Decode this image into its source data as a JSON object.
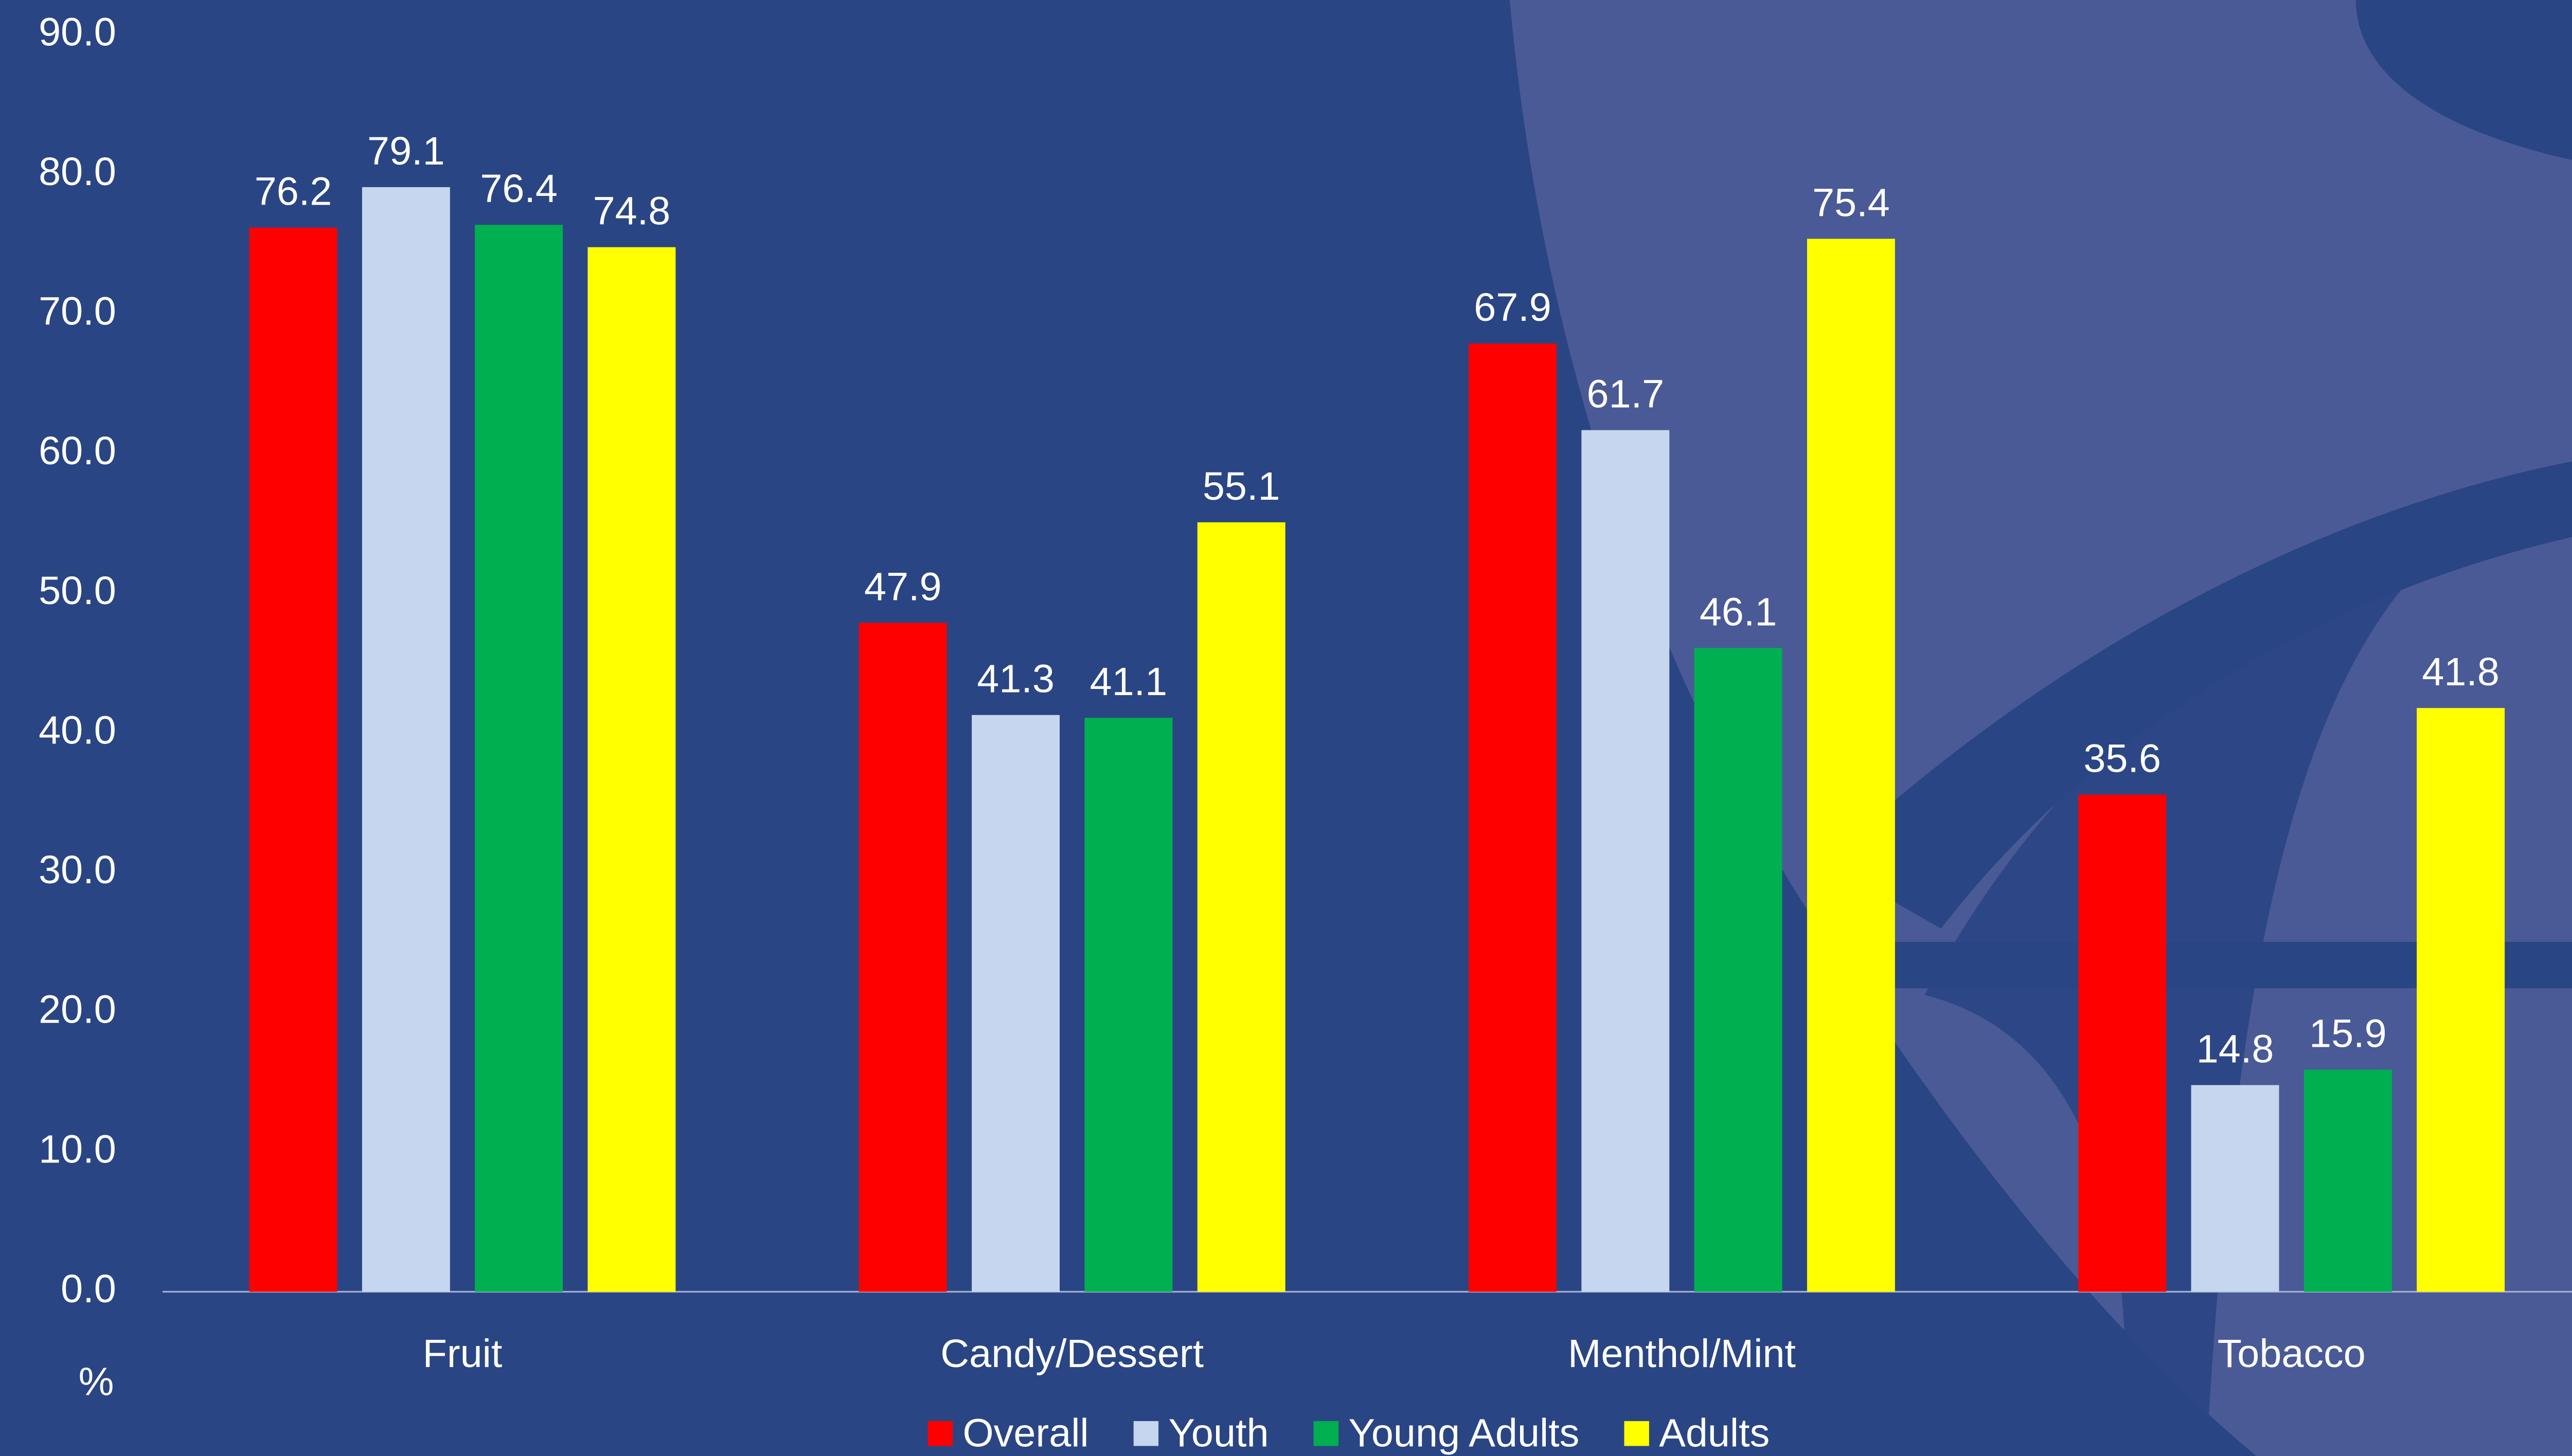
{
  "chart_data": {
    "type": "bar",
    "y_label": "%",
    "categories": [
      "Fruit",
      "Candy/Dessert",
      "Menthol/Mint",
      "Tobacco"
    ],
    "series": [
      {
        "name": "Overall",
        "color": "#ff0000",
        "values": [
          76.2,
          47.9,
          67.9,
          35.6
        ]
      },
      {
        "name": "Youth",
        "color": "#c5d6ee",
        "values": [
          79.1,
          41.3,
          61.7,
          14.8
        ]
      },
      {
        "name": "Young Adults",
        "color": "#00b050",
        "values": [
          76.4,
          41.1,
          46.1,
          15.9
        ]
      },
      {
        "name": "Adults",
        "color": "#ffff00",
        "values": [
          74.8,
          55.1,
          75.4,
          41.8
        ]
      }
    ],
    "ylim": [
      0,
      90
    ],
    "yticks": [
      {
        "value": 0,
        "label": "0.0"
      },
      {
        "value": 10,
        "label": "10.0"
      },
      {
        "value": 20,
        "label": "20.0"
      },
      {
        "value": 30,
        "label": "30.0"
      },
      {
        "value": 40,
        "label": "40.0"
      },
      {
        "value": 50,
        "label": "50.0"
      },
      {
        "value": 60,
        "label": "60.0"
      },
      {
        "value": 70,
        "label": "70.0"
      },
      {
        "value": 80,
        "label": "80.0"
      },
      {
        "value": 90,
        "label": "90.0"
      }
    ],
    "grid": false,
    "legend": "bottom"
  }
}
